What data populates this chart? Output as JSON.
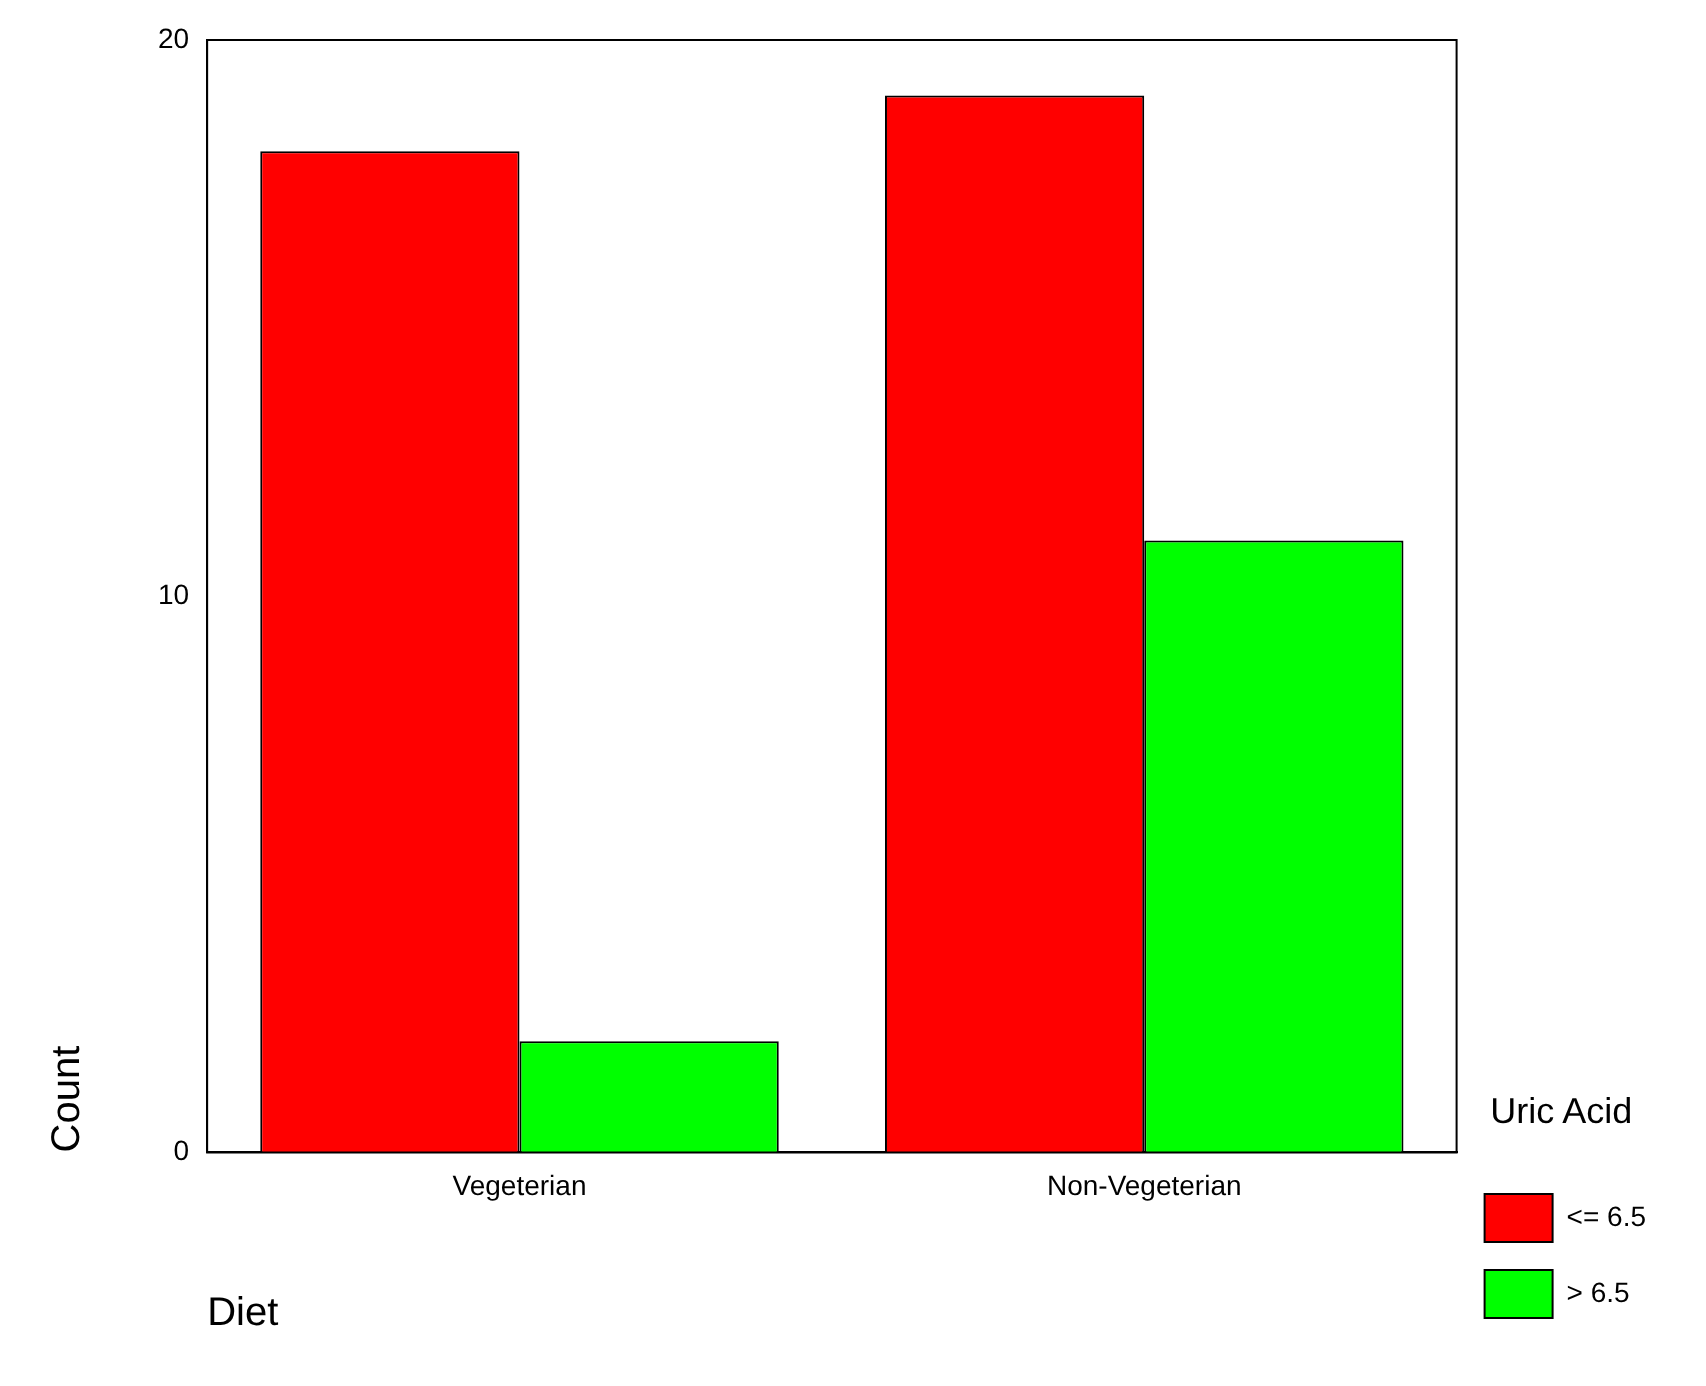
{
  "chart_data": {
    "type": "bar",
    "xlabel": "Diet",
    "ylabel": "Count",
    "legend_title": "Uric Acid",
    "categories": [
      "Vegeterian",
      "Non-Vegeterian"
    ],
    "series": [
      {
        "name": "<= 6.5",
        "color": "#ff0000",
        "values": [
          18,
          19
        ]
      },
      {
        "name": "> 6.5",
        "color": "#00ff00",
        "values": [
          2,
          11
        ]
      }
    ],
    "ylim": [
      0,
      20
    ],
    "yticks": [
      0,
      10,
      20
    ],
    "grid": false,
    "legend": "right"
  }
}
